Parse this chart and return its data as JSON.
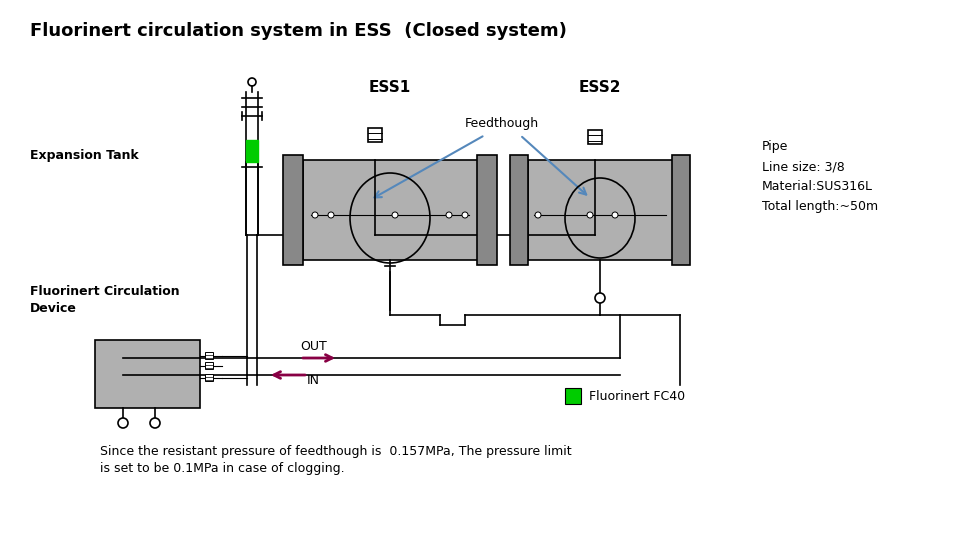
{
  "title": "Fluorinert circulation system in ESS  (Closed system)",
  "title_fontsize": 13,
  "bg_color": "#ffffff",
  "line_color": "#000000",
  "gray_color": "#b0b0b0",
  "dark_gray": "#888888",
  "green_color": "#00cc00",
  "arrow_color": "#880044",
  "blue_arrow_color": "#5588bb",
  "label_expansion_tank": "Expansion Tank",
  "label_circ_device_line1": "Fluorinert Circulation",
  "label_circ_device_line2": "Device",
  "label_ess1": "ESS1",
  "label_ess2": "ESS2",
  "label_feedthough": "Feedthough",
  "label_out": "OUT",
  "label_in": "IN",
  "pipe_line1": "Pipe",
  "pipe_line2": "Line size: 3/8",
  "pipe_line3": "Material:SUS316L",
  "pipe_line4": "Total length:~50m",
  "label_fc40": "Fluorinert FC40",
  "bottom_text_line1": "Since the resistant pressure of feedthough is  0.157MPa, The pressure limit",
  "bottom_text_line2": "is set to be 0.1MPa in case of clogging."
}
